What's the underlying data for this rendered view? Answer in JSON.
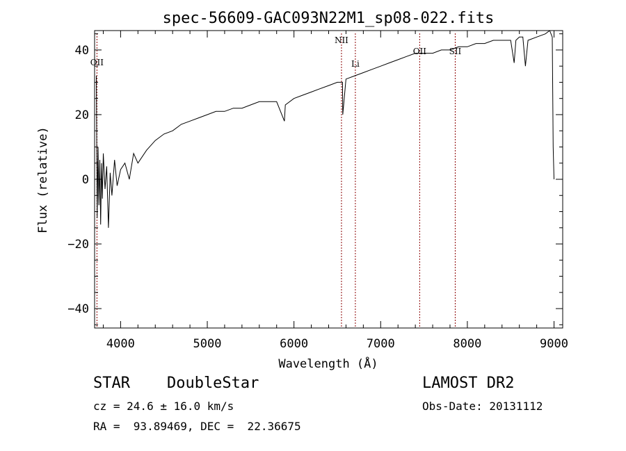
{
  "chart_data": {
    "type": "line",
    "title": "spec-56609-GAC093N22M1_sp08-022.fits",
    "xlabel": "Wavelength (Å)",
    "ylabel": "Flux (relative)",
    "xlim": [
      3700,
      9100
    ],
    "ylim": [
      -46,
      46
    ],
    "xticks": [
      4000,
      5000,
      6000,
      7000,
      8000,
      9000
    ],
    "yticks": [
      -40,
      -20,
      0,
      20,
      40
    ],
    "grid": false,
    "line_color": "#000000",
    "marker_color": "#8b0000",
    "series": [
      {
        "x": [
          3720,
          3730,
          3740,
          3750,
          3760,
          3770,
          3780,
          3790,
          3800,
          3820,
          3840,
          3860,
          3880,
          3900,
          3930,
          3960,
          4000,
          4050,
          4100,
          4150,
          4200,
          4300,
          4400,
          4500,
          4600,
          4700,
          4800,
          4900,
          5000,
          5100,
          5200,
          5300,
          5400,
          5500,
          5600,
          5700,
          5800,
          5890,
          5900,
          6000,
          6100,
          6200,
          6300,
          6400,
          6500,
          6560,
          6563,
          6600,
          6700,
          6800,
          6900,
          7000,
          7100,
          7200,
          7300,
          7400,
          7500,
          7600,
          7700,
          7800,
          7900,
          8000,
          8100,
          8200,
          8300,
          8400,
          8450,
          8500,
          8540,
          8560,
          8600,
          8640,
          8670,
          8700,
          8800,
          8900,
          8950,
          8980,
          8990,
          9000
        ],
        "y": [
          32,
          -12,
          10,
          -8,
          6,
          -14,
          5,
          -6,
          8,
          -3,
          4,
          -15,
          2,
          -5,
          6,
          -2,
          3,
          5,
          0,
          8,
          5,
          9,
          12,
          14,
          15,
          17,
          18,
          19,
          20,
          21,
          21,
          22,
          22,
          23,
          24,
          24,
          24,
          18,
          23,
          25,
          26,
          27,
          28,
          29,
          30,
          30,
          20,
          31,
          32,
          33,
          34,
          35,
          36,
          37,
          38,
          39,
          39,
          39,
          40,
          40,
          41,
          41,
          42,
          42,
          43,
          43,
          43,
          43,
          36,
          43,
          44,
          44,
          35,
          43,
          44,
          45,
          46,
          44,
          10,
          0
        ]
      }
    ],
    "line_markers": [
      {
        "label": "OII",
        "x": 3727
      },
      {
        "label": "NII",
        "x": 6548
      },
      {
        "label": "Li",
        "x": 6708
      },
      {
        "label": "OII",
        "x": 7450
      },
      {
        "label": "SII",
        "x": 7860
      }
    ]
  },
  "info": {
    "class_line": "STAR    DoubleStar",
    "cz_line": "cz = 24.6 ± 16.0 km/s",
    "coord_line": "RA =  93.89469, DEC =  22.36675",
    "survey": "LAMOST DR2",
    "obs_date": "Obs-Date: 20131112"
  }
}
